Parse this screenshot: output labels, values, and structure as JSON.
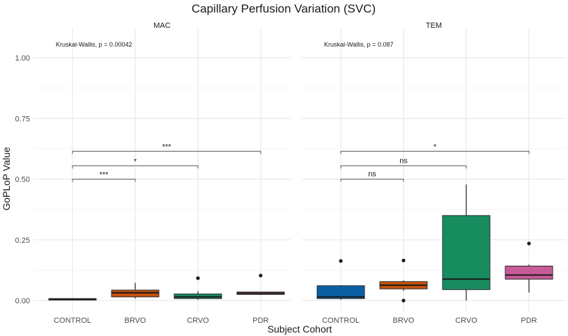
{
  "chart_data": {
    "type": "boxplot",
    "title": "Capillary Perfusion Variation (SVC)",
    "xlabel": "Subject Cohort",
    "ylabel": "GoPLoP Value",
    "ylim": [
      0,
      1.0
    ],
    "yticks": [
      0.0,
      0.25,
      0.5,
      0.75,
      1.0
    ],
    "ytick_labels": [
      "0.00",
      "0.25",
      "0.50",
      "0.75",
      "1.00"
    ],
    "grid": true,
    "categories": [
      "CONTROL",
      "BRVO",
      "CRVO",
      "PDR"
    ],
    "colors": {
      "CONTROL": "#0b5fa5",
      "BRVO": "#c4510e",
      "CRVO": "#178c5f",
      "PDR": "#c75b98"
    },
    "panels": [
      {
        "name": "MAC",
        "test_label": "Kruskal-Wallis, p = 0.00042",
        "boxes": [
          {
            "category": "CONTROL",
            "whisker_low": 0.001,
            "q1": 0.002,
            "median": 0.005,
            "q3": 0.008,
            "whisker_high": 0.009,
            "outliers": []
          },
          {
            "category": "BRVO",
            "whisker_low": 0.008,
            "q1": 0.015,
            "median": 0.032,
            "q3": 0.043,
            "whisker_high": 0.073,
            "outliers": []
          },
          {
            "category": "CRVO",
            "whisker_low": 0.003,
            "q1": 0.008,
            "median": 0.015,
            "q3": 0.027,
            "whisker_high": 0.038,
            "outliers": [
              0.092
            ]
          },
          {
            "category": "PDR",
            "whisker_low": 0.023,
            "q1": 0.025,
            "median": 0.03,
            "q3": 0.035,
            "whisker_high": 0.036,
            "outliers": [
              0.103
            ]
          }
        ],
        "comparisons": [
          {
            "from": "CONTROL",
            "to": "BRVO",
            "y": 0.5,
            "label": "***"
          },
          {
            "from": "CONTROL",
            "to": "CRVO",
            "y": 0.555,
            "label": "*"
          },
          {
            "from": "CONTROL",
            "to": "PDR",
            "y": 0.615,
            "label": "***"
          }
        ]
      },
      {
        "name": "TEM",
        "test_label": "Kruskal-Wallis, p = 0.087",
        "boxes": [
          {
            "category": "CONTROL",
            "whisker_low": 0.003,
            "q1": 0.008,
            "median": 0.015,
            "q3": 0.061,
            "whisker_high": 0.063,
            "outliers": [
              0.163
            ]
          },
          {
            "category": "BRVO",
            "whisker_low": 0.04,
            "q1": 0.048,
            "median": 0.063,
            "q3": 0.078,
            "whisker_high": 0.083,
            "outliers": [
              0.165,
              0.0
            ]
          },
          {
            "category": "CRVO",
            "whisker_low": 0.0,
            "q1": 0.045,
            "median": 0.088,
            "q3": 0.35,
            "whisker_high": 0.478,
            "outliers": []
          },
          {
            "category": "PDR",
            "whisker_low": 0.033,
            "q1": 0.088,
            "median": 0.105,
            "q3": 0.142,
            "whisker_high": 0.148,
            "outliers": [
              0.235
            ]
          }
        ],
        "comparisons": [
          {
            "from": "CONTROL",
            "to": "BRVO",
            "y": 0.5,
            "label": "ns"
          },
          {
            "from": "CONTROL",
            "to": "CRVO",
            "y": 0.555,
            "label": "ns"
          },
          {
            "from": "CONTROL",
            "to": "PDR",
            "y": 0.615,
            "label": "*"
          }
        ]
      }
    ]
  }
}
